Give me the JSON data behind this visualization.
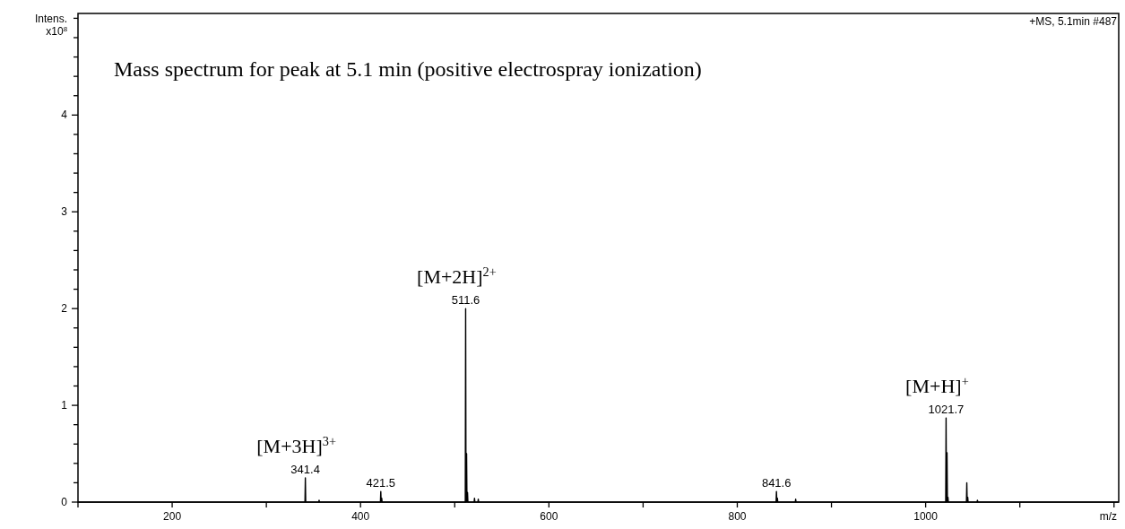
{
  "chart_data": {
    "type": "line",
    "title": "Mass spectrum for peak at 5.1 min (positive electrospray ionization)",
    "xlabel": "m/z",
    "ylabel": "Intens. x10$^{8}$",
    "annotations": [
      "+MS, 5.1min #487",
      {
        "text": "341.4",
        "x": 341.4,
        "y": 0.25
      },
      {
        "text": "[M+3H]$^{3+}$",
        "x": 341.4,
        "y": 0.25
      },
      {
        "text": "421.5",
        "x": 421.5,
        "y": 0.11
      },
      {
        "text": "511.6",
        "x": 511.6,
        "y": 2.0
      },
      {
        "text": "[M+2H]$^{2+}$",
        "x": 511.6,
        "y": 2.0
      },
      {
        "text": "841.6",
        "x": 841.6,
        "y": 0.11
      },
      {
        "text": "1021.7",
        "x": 1021.7,
        "y": 0.87
      },
      {
        "text": "[M+H]$^{+}$",
        "x": 1021.7,
        "y": 0.87
      }
    ],
    "xlim": [
      100,
      1205
    ],
    "xticks": [
      {
        "value": 100,
        "label": null
      },
      200,
      {
        "value": 300,
        "label": null
      },
      400,
      {
        "value": 500,
        "label": null
      },
      600,
      {
        "value": 700,
        "label": null
      },
      800,
      {
        "value": 900,
        "label": null
      },
      1000,
      {
        "value": 1100,
        "label": null
      },
      {
        "value": 1200,
        "label": null
      }
    ],
    "ylim": [
      0,
      5.05
    ],
    "yticks": [
      0,
      {
        "value": 0.2,
        "label": null
      },
      {
        "value": 0.4,
        "label": null
      },
      {
        "value": 0.6,
        "label": null
      },
      {
        "value": 0.8,
        "label": null
      },
      1,
      {
        "value": 1.2,
        "label": null
      },
      {
        "value": 1.4,
        "label": null
      },
      {
        "value": 1.6,
        "label": null
      },
      {
        "value": 1.8,
        "label": null
      },
      2,
      {
        "value": 2.2,
        "label": null
      },
      {
        "value": 2.4,
        "label": null
      },
      {
        "value": 2.6,
        "label": null
      },
      {
        "value": 2.8,
        "label": null
      },
      3,
      {
        "value": 3.2,
        "label": null
      },
      {
        "value": 3.4,
        "label": null
      },
      {
        "value": 3.6,
        "label": null
      },
      {
        "value": 3.8,
        "label": null
      },
      4,
      {
        "value": 4.2,
        "label": null
      },
      {
        "value": 4.4,
        "label": null
      },
      {
        "value": 4.6,
        "label": null
      },
      {
        "value": 4.8,
        "label": null
      },
      {
        "value": 5,
        "label": null
      }
    ],
    "grid": false,
    "series": [
      {
        "color": "#000000",
        "x": [
          100,
          341.0,
          341.4,
          341.8,
          355.6,
          356,
          356.4,
          421.1,
          421.5,
          421.9,
          422.5,
          422.9,
          511.2,
          511.6,
          512.0,
          512.6,
          513.0,
          513.6,
          514.0,
          520.6,
          521,
          521.4,
          524.6,
          525,
          525.4,
          841.2,
          841.6,
          842.0,
          842.6,
          843.0,
          861.6,
          862,
          862.4,
          1021.3,
          1021.7,
          1022.1,
          1022.7,
          1023.1,
          1023.7,
          1024.1,
          1043.3,
          1043.7,
          1044.1,
          1044.7,
          1045.1,
          1054.6,
          1055,
          1055.4,
          1205
        ],
        "values": [
          0,
          0,
          0.25,
          0,
          0,
          0.02,
          0,
          0,
          0.11,
          0,
          0.04,
          0,
          0,
          2.0,
          0,
          0.5,
          0,
          0.1,
          0,
          0,
          0.04,
          0,
          0,
          0.03,
          0,
          0,
          0.11,
          0,
          0.04,
          0,
          0,
          0.03,
          0,
          0,
          0.87,
          0,
          0.51,
          0,
          0.05,
          0,
          0,
          0.2,
          0,
          0.05,
          0,
          0,
          0.02,
          0,
          0
        ]
      }
    ]
  }
}
